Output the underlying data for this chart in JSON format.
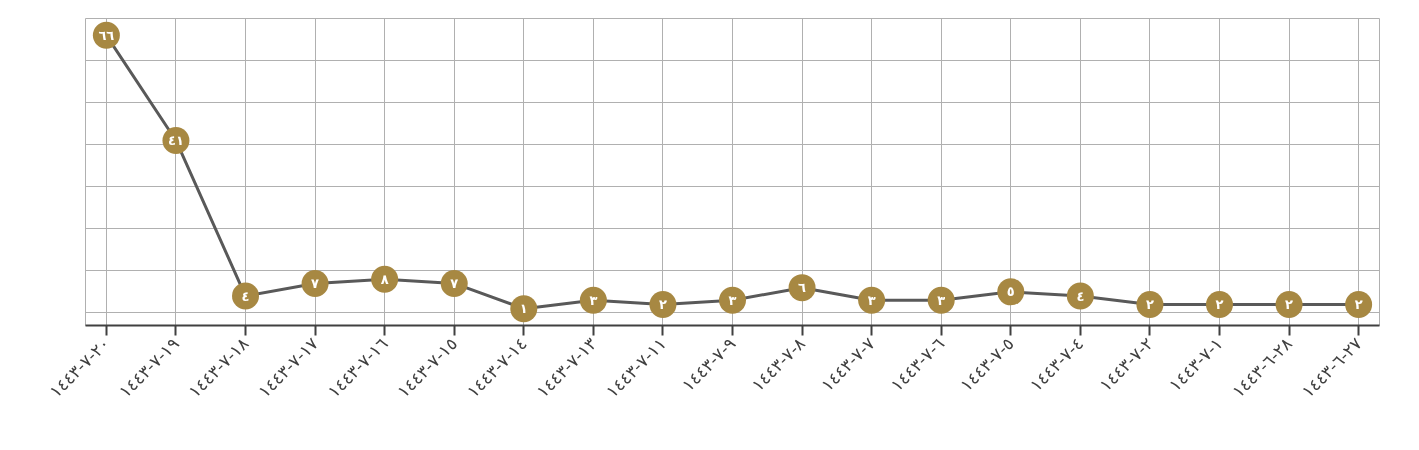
{
  "chart_data": {
    "type": "line",
    "categories": [
      "١٤٤٣-٧-٢٠",
      "١٤٤٣-٧-١٩",
      "١٤٤٣-٧-١٨",
      "١٤٤٣-٧-١٧",
      "١٤٤٣-٧-١٦",
      "١٤٤٣-٧-١٥",
      "١٤٤٣-٧-١٤",
      "١٤٤٣-٧-١٣",
      "١٤٤٣-٧-١١",
      "١٤٤٣-٧-٩",
      "١٤٤٣-٧-٨",
      "١٤٤٣-٧-٧",
      "١٤٤٣-٧-٦",
      "١٤٤٣-٧-٥",
      "١٤٤٣-٧-٤",
      "١٤٤٣-٧-٢",
      "١٤٤٣-٧-١",
      "١٤٤٣-٦-٢٨",
      "١٤٤٣-٦-٢٧"
    ],
    "series": [
      {
        "color": "#595959",
        "values": [
          66,
          41,
          4,
          7,
          8,
          7,
          1,
          3,
          2,
          3,
          6,
          3,
          3,
          5,
          4,
          2,
          2,
          2,
          2
        ],
        "colors": [
          "#a78842",
          "#a78842",
          "#a78842",
          "#a78842",
          "#a78842",
          "#a78842",
          "#a78842",
          "#a78842",
          "#a78842",
          "#a78842",
          "#a78842",
          "#a78842",
          "#a78842",
          "#a78842",
          "#a78842",
          "#a78842",
          "#a78842",
          "#a78842",
          "#a78842"
        ],
        "value_labels": [
          "٦٦",
          "٤١",
          "٤",
          "٧",
          "٨",
          "٧",
          "١",
          "٣",
          "٢",
          "٣",
          "٦",
          "٣",
          "٣",
          "٥",
          "٤",
          "٢",
          "٢",
          "٢",
          "٢"
        ]
      }
    ],
    "marker": "circle",
    "ylim": [
      -3,
      70
    ],
    "yticks": [
      {
        "value": 0,
        "label": null
      },
      {
        "value": 10,
        "label": null
      },
      {
        "value": 20,
        "label": null
      },
      {
        "value": 30,
        "label": null
      },
      {
        "value": 40,
        "label": null
      },
      {
        "value": 50,
        "label": null
      },
      {
        "value": 60,
        "label": null
      }
    ],
    "tick_labels": "x",
    "grid": true
  }
}
